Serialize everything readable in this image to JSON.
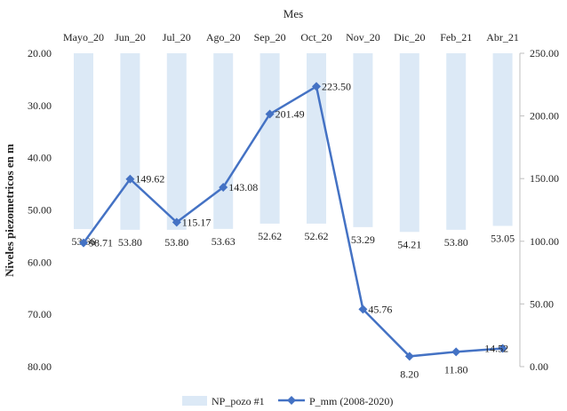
{
  "chart_data": {
    "type": "bar+line",
    "top_axis_title": "Mes",
    "left_axis_title": "Niveles piezometricos en m",
    "categories": [
      "Mayo_20",
      "Jun_20",
      "Jul_20",
      "Ago_20",
      "Sep_20",
      "Oct_20",
      "Nov_20",
      "Dic_20",
      "Feb_21",
      "Abr_21"
    ],
    "left_axis": {
      "min": 20,
      "max": 80,
      "reversed": true,
      "ticks": [
        "20.00",
        "30.00",
        "40.00",
        "50.00",
        "60.00",
        "70.00",
        "80.00"
      ],
      "tick_values": [
        20,
        30,
        40,
        50,
        60,
        70,
        80
      ]
    },
    "right_axis": {
      "min": 0,
      "max": 250,
      "ticks": [
        "0.00",
        "50.00",
        "100.00",
        "150.00",
        "200.00",
        "250.00"
      ],
      "tick_values": [
        0,
        50,
        100,
        150,
        200,
        250
      ]
    },
    "series": [
      {
        "name": "NP_pozo #1",
        "type": "bar",
        "axis": "left",
        "color": "#dce9f6",
        "values": [
          53.66,
          53.8,
          53.8,
          53.63,
          52.62,
          52.62,
          53.29,
          54.21,
          53.8,
          53.05
        ],
        "labels": [
          "53.66",
          "53.80",
          "53.80",
          "53.63",
          "52.62",
          "52.62",
          "53.29",
          "54.21",
          "53.80",
          "53.05"
        ]
      },
      {
        "name": "P_mm (2008-2020)",
        "type": "line",
        "axis": "right",
        "color": "#4472c4",
        "values": [
          98.71,
          149.62,
          115.17,
          143.08,
          201.49,
          223.5,
          45.76,
          8.2,
          11.8,
          14.52
        ],
        "labels": [
          "98.71",
          "149.62",
          "115.17",
          "143.08",
          "201.49",
          "223.50",
          "45.76",
          "8.20",
          "11.80",
          "14.52"
        ]
      }
    ],
    "grid": false,
    "legend_position": "bottom"
  }
}
